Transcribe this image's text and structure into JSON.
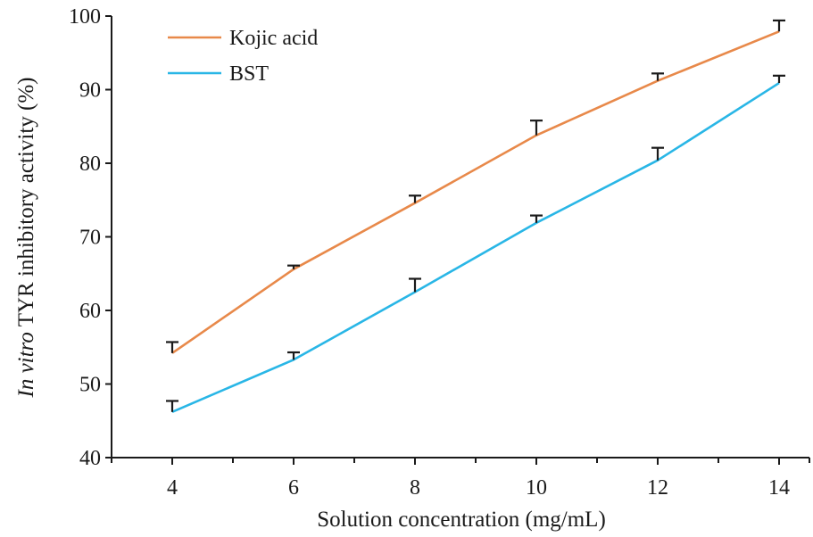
{
  "chart_data": {
    "type": "line",
    "x": [
      4,
      6,
      8,
      10,
      12,
      14
    ],
    "series": [
      {
        "name": "Kojic acid",
        "values": [
          54.2,
          65.6,
          74.6,
          83.8,
          91.2,
          97.9
        ],
        "error_upper": [
          1.5,
          0.5,
          1.0,
          2.0,
          1.0,
          1.5
        ],
        "color": "#e8894a"
      },
      {
        "name": "BST",
        "values": [
          46.2,
          53.3,
          62.5,
          71.9,
          80.4,
          90.9
        ],
        "error_upper": [
          1.5,
          1.0,
          1.8,
          1.0,
          1.7,
          1.0
        ],
        "color": "#29b6e6"
      }
    ],
    "title": "",
    "xlabel": "Solution concentration (mg/mL)",
    "ylabel_italic": "In vitro",
    "ylabel_rest": " TYR inhibitory activity (%)",
    "xlim": [
      3,
      14.5
    ],
    "ylim": [
      40,
      100
    ],
    "xticks": [
      4,
      6,
      8,
      10,
      12,
      14
    ],
    "yticks": [
      40,
      50,
      60,
      70,
      80,
      90,
      100
    ],
    "grid": false,
    "legend_position": "top-left"
  }
}
